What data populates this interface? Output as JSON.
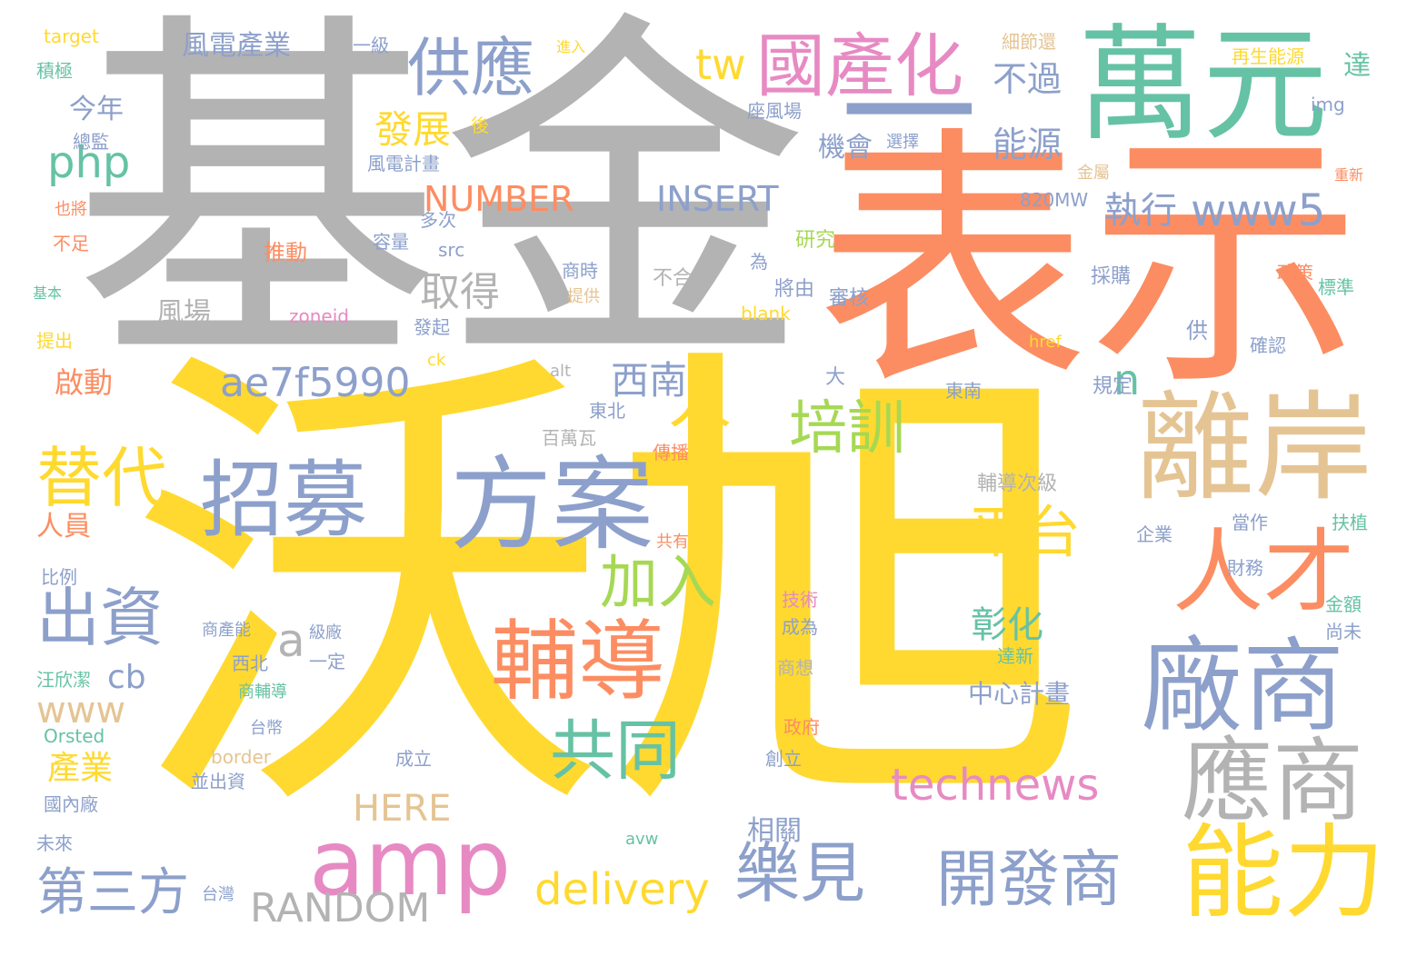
{
  "words": [
    {
      "text": "沃旭",
      "color": "#ffd92f"
    },
    {
      "text": "基金",
      "color": "#b3b3b3"
    },
    {
      "text": "表示",
      "color": "#fc8d62"
    },
    {
      "text": "萬元",
      "color": "#66c2a5"
    },
    {
      "text": "一",
      "color": "#8da0cb"
    },
    {
      "text": "離岸",
      "color": "#e5c494"
    },
    {
      "text": "方案",
      "color": "#8da0cb"
    },
    {
      "text": "招募",
      "color": "#8da0cb"
    },
    {
      "text": "輔導",
      "color": "#fc8d62"
    },
    {
      "text": "廠商",
      "color": "#8da0cb"
    },
    {
      "text": "應商",
      "color": "#b3b3b3"
    },
    {
      "text": "能力",
      "color": "#ffd92f"
    },
    {
      "text": "人才",
      "color": "#fc8d62"
    },
    {
      "text": "amp",
      "color": "#e78ac3"
    },
    {
      "text": "國產化",
      "color": "#e78ac3"
    },
    {
      "text": "供應",
      "color": "#8da0cb"
    },
    {
      "text": "樂見",
      "color": "#8da0cb"
    },
    {
      "text": "開發商",
      "color": "#8da0cb"
    },
    {
      "text": "出資",
      "color": "#8da0cb"
    },
    {
      "text": "替代",
      "color": "#ffd92f"
    },
    {
      "text": "共同",
      "color": "#66c2a5"
    },
    {
      "text": "加入",
      "color": "#a6d854"
    },
    {
      "text": "平台",
      "color": "#ffd92f"
    },
    {
      "text": "培訓",
      "color": "#a6d854"
    },
    {
      "text": "technews",
      "color": "#e78ac3"
    },
    {
      "text": "delivery",
      "color": "#ffd92f"
    },
    {
      "text": "RANDOM",
      "color": "#b3b3b3"
    },
    {
      "text": "第三方",
      "color": "#8da0cb"
    },
    {
      "text": "ae7f5990",
      "color": "#8da0cb"
    },
    {
      "text": "www5",
      "color": "#8da0cb"
    },
    {
      "text": "NUMBER",
      "color": "#fc8d62"
    },
    {
      "text": "INSERT",
      "color": "#8da0cb"
    },
    {
      "text": "php",
      "color": "#66c2a5"
    },
    {
      "text": "tw",
      "color": "#ffd92f"
    },
    {
      "text": "人",
      "color": "#ffd92f"
    },
    {
      "text": "西南",
      "color": "#8da0cb"
    },
    {
      "text": "彰化",
      "color": "#66c2a5"
    },
    {
      "text": "n",
      "color": "#66c2a5"
    },
    {
      "text": "a",
      "color": "#b3b3b3"
    },
    {
      "text": "cb",
      "color": "#8da0cb"
    },
    {
      "text": "www",
      "color": "#e5c494"
    },
    {
      "text": "HERE",
      "color": "#e5c494"
    },
    {
      "text": "發展",
      "color": "#ffd92f"
    },
    {
      "text": "取得",
      "color": "#b3b3b3"
    },
    {
      "text": "執行",
      "color": "#8da0cb"
    },
    {
      "text": "能源",
      "color": "#8da0cb"
    },
    {
      "text": "不過",
      "color": "#8da0cb"
    },
    {
      "text": "機會",
      "color": "#8da0cb"
    },
    {
      "text": "風電產業",
      "color": "#8da0cb"
    },
    {
      "text": "今年",
      "color": "#8da0cb"
    },
    {
      "text": "風場",
      "color": "#b3b3b3"
    },
    {
      "text": "啟動",
      "color": "#fc8d62"
    },
    {
      "text": "人員",
      "color": "#fc8d62"
    },
    {
      "text": "產業",
      "color": "#ffd92f"
    },
    {
      "text": "相關",
      "color": "#8da0cb"
    },
    {
      "text": "中心計畫",
      "color": "#8da0cb"
    },
    {
      "text": "輔導次級",
      "color": "#b3b3b3"
    },
    {
      "text": "達",
      "color": "#66c2a5"
    },
    {
      "text": "再生能源",
      "color": "#ffd92f"
    },
    {
      "text": "細節還",
      "color": "#e5c494"
    },
    {
      "text": "target",
      "color": "#ffd92f"
    },
    {
      "text": "積極",
      "color": "#66c2a5"
    },
    {
      "text": "總監",
      "color": "#8da0cb"
    },
    {
      "text": "Orsted",
      "color": "#66c2a5"
    },
    {
      "text": "zoneid",
      "color": "#e78ac3"
    },
    {
      "text": "blank",
      "color": "#ffd92f"
    },
    {
      "text": "border",
      "color": "#e5c494"
    },
    {
      "text": "820MW",
      "color": "#8da0cb"
    },
    {
      "text": "img",
      "color": "#8da0cb"
    },
    {
      "text": "src",
      "color": "#8da0cb"
    },
    {
      "text": "推動",
      "color": "#fc8d62"
    },
    {
      "text": "座風場",
      "color": "#8da0cb"
    },
    {
      "text": "風電計畫",
      "color": "#8da0cb"
    },
    {
      "text": "研究",
      "color": "#a6d854"
    },
    {
      "text": "審核",
      "color": "#8da0cb"
    },
    {
      "text": "將由",
      "color": "#8da0cb"
    },
    {
      "text": "採購",
      "color": "#8da0cb"
    },
    {
      "text": "政策",
      "color": "#fc8d62"
    },
    {
      "text": "標準",
      "color": "#66c2a5"
    },
    {
      "text": "確認",
      "color": "#8da0cb"
    },
    {
      "text": "規定",
      "color": "#8da0cb"
    },
    {
      "text": "東北",
      "color": "#8da0cb"
    },
    {
      "text": "東南",
      "color": "#8da0cb"
    },
    {
      "text": "西北",
      "color": "#8da0cb"
    },
    {
      "text": "百萬瓦",
      "color": "#b3b3b3"
    },
    {
      "text": "傳播",
      "color": "#fc8d62"
    },
    {
      "text": "技術",
      "color": "#e78ac3"
    },
    {
      "text": "成為",
      "color": "#8da0cb"
    },
    {
      "text": "商想",
      "color": "#b3b3b3"
    },
    {
      "text": "政府",
      "color": "#fc8d62"
    },
    {
      "text": "創立",
      "color": "#8da0cb"
    },
    {
      "text": "成立",
      "color": "#8da0cb"
    },
    {
      "text": "並出資",
      "color": "#8da0cb"
    },
    {
      "text": "國內廠",
      "color": "#8da0cb"
    },
    {
      "text": "未來",
      "color": "#8da0cb"
    },
    {
      "text": "汪欣潔",
      "color": "#66c2a5"
    },
    {
      "text": "比例",
      "color": "#8da0cb"
    },
    {
      "text": "台灣",
      "color": "#8da0cb"
    },
    {
      "text": "企業",
      "color": "#8da0cb"
    },
    {
      "text": "財務",
      "color": "#8da0cb"
    },
    {
      "text": "扶植",
      "color": "#66c2a5"
    },
    {
      "text": "金額",
      "color": "#66c2a5"
    },
    {
      "text": "尚未",
      "color": "#8da0cb"
    },
    {
      "text": "當作",
      "color": "#8da0cb"
    },
    {
      "text": "達新",
      "color": "#66c2a5"
    },
    {
      "text": "提出",
      "color": "#ffd92f"
    },
    {
      "text": "不足",
      "color": "#fc8d62"
    },
    {
      "text": "也將",
      "color": "#fc8d62"
    },
    {
      "text": "基本",
      "color": "#66c2a5"
    },
    {
      "text": "容量",
      "color": "#8da0cb"
    },
    {
      "text": "多次",
      "color": "#8da0cb"
    },
    {
      "text": "發起",
      "color": "#8da0cb"
    },
    {
      "text": "商時",
      "color": "#8da0cb"
    },
    {
      "text": "提供",
      "color": "#e5c494"
    },
    {
      "text": "不合",
      "color": "#b3b3b3"
    },
    {
      "text": "選擇",
      "color": "#8da0cb"
    },
    {
      "text": "一級",
      "color": "#8da0cb"
    },
    {
      "text": "進入",
      "color": "#ffd92f"
    },
    {
      "text": "後",
      "color": "#ffd92f"
    },
    {
      "text": "供",
      "color": "#8da0cb"
    },
    {
      "text": "台幣",
      "color": "#8da0cb"
    },
    {
      "text": "一定",
      "color": "#8da0cb"
    },
    {
      "text": "商產能",
      "color": "#8da0cb"
    },
    {
      "text": "級廠",
      "color": "#8da0cb"
    },
    {
      "text": "商輔導",
      "color": "#66c2a5"
    },
    {
      "text": "金屬",
      "color": "#e5c494"
    },
    {
      "text": "重新",
      "color": "#fc8d62"
    },
    {
      "text": "ck",
      "color": "#ffd92f"
    },
    {
      "text": "alt",
      "color": "#b3b3b3"
    },
    {
      "text": "href",
      "color": "#ffd92f"
    },
    {
      "text": "avw",
      "color": "#66c2a5"
    },
    {
      "text": "共有",
      "color": "#fc8d62"
    },
    {
      "text": "為",
      "color": "#8da0cb"
    },
    {
      "text": "大",
      "color": "#8da0cb"
    }
  ]
}
